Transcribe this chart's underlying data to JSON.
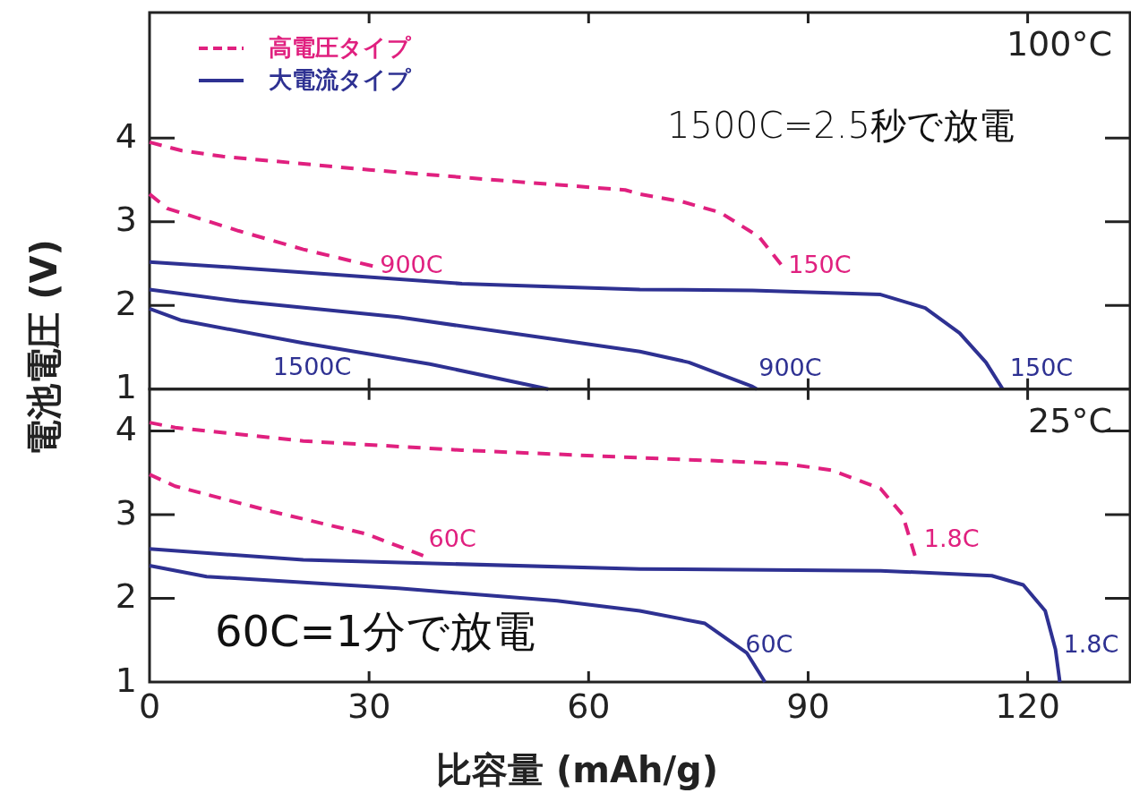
{
  "chart_data": [
    {
      "type": "line",
      "ylabel": "電池電圧 (V)",
      "xlim": [
        0,
        134
      ],
      "xticks": [
        0,
        30,
        60,
        90,
        120
      ],
      "ylim": [
        1,
        5.5
      ],
      "yticks": [
        1,
        2,
        3,
        4
      ],
      "tick_labels": "y",
      "legend": "top left",
      "series": [
        {
          "name": "高電圧タイプ",
          "color": "#e0207f",
          "line_style": "dashed",
          "x": [
            0,
            4.4,
            10,
            30,
            50,
            65,
            67,
            72.8,
            78,
            83.3,
            86.3
          ],
          "values": [
            3.95,
            3.85,
            3.78,
            3.62,
            3.48,
            3.38,
            3.33,
            3.24,
            3.11,
            2.82,
            2.49
          ]
        },
        {
          "color": "#e0207f",
          "line_style": "dashed",
          "x": [
            0,
            2.4,
            12.2,
            21,
            30.5
          ],
          "values": [
            3.33,
            3.16,
            2.89,
            2.67,
            2.47
          ]
        },
        {
          "name": "大電流タイプ",
          "color": "#2e3192",
          "line_style": "solid",
          "x": [
            0,
            12.2,
            42.7,
            67,
            82.4,
            99.9,
            106,
            110.7,
            114.3,
            116.6
          ],
          "values": [
            2.52,
            2.45,
            2.26,
            2.19,
            2.18,
            2.13,
            1.97,
            1.67,
            1.32,
            1.0
          ]
        },
        {
          "color": "#2e3192",
          "line_style": "solid",
          "x": [
            0,
            12.2,
            34,
            55.7,
            67,
            73.7,
            82.4,
            83
          ],
          "values": [
            2.19,
            2.05,
            1.86,
            1.59,
            1.45,
            1.32,
            1.03,
            1.0
          ]
        },
        {
          "color": "#2e3192",
          "line_style": "solid",
          "x": [
            0,
            4.4,
            21,
            38.3,
            54.5
          ],
          "values": [
            1.96,
            1.82,
            1.55,
            1.3,
            1.0
          ]
        }
      ],
      "annotations": [
        "100°C",
        "1500C=2.5秒で放電",
        {
          "text": "150C",
          "x": 86.3,
          "y": 2.49
        },
        {
          "text": "900C",
          "x": 30.5,
          "y": 2.47
        },
        {
          "text": "150C",
          "x": 116.6,
          "y": 1.0
        },
        {
          "text": "900C",
          "x": 83,
          "y": 1.0
        },
        {
          "text": "1500C",
          "x": 21,
          "y": 1.55
        }
      ]
    },
    {
      "type": "line",
      "xlabel": "比容量 (mAh/g)",
      "xlim": [
        0,
        134
      ],
      "xticks": [
        0,
        30,
        60,
        90,
        120
      ],
      "ylim": [
        1,
        4.5
      ],
      "yticks": [
        1,
        2,
        3,
        4
      ],
      "series": [
        {
          "color": "#e0207f",
          "line_style": "dashed",
          "x": [
            0,
            3.5,
            21,
            42.7,
            67,
            86.8,
            93.3,
            99.9,
            102.9,
            104.6
          ],
          "values": [
            4.1,
            4.04,
            3.88,
            3.77,
            3.68,
            3.61,
            3.53,
            3.31,
            3.0,
            2.51
          ]
        },
        {
          "color": "#e0207f",
          "line_style": "dashed",
          "x": [
            0,
            3.5,
            16.6,
            29.6,
            37.4
          ],
          "values": [
            3.48,
            3.34,
            3.04,
            2.77,
            2.51
          ]
        },
        {
          "color": "#2e3192",
          "line_style": "solid",
          "x": [
            0,
            21,
            67,
            99.9,
            115.1,
            119.4,
            122.4,
            123.8,
            124.4
          ],
          "values": [
            2.59,
            2.46,
            2.35,
            2.33,
            2.27,
            2.16,
            1.85,
            1.39,
            1.0
          ]
        },
        {
          "color": "#2e3192",
          "line_style": "solid",
          "x": [
            0,
            7.8,
            34,
            55.7,
            67,
            75.9,
            81.6,
            84.1
          ],
          "values": [
            2.39,
            2.26,
            2.12,
            1.97,
            1.85,
            1.7,
            1.35,
            1.0
          ]
        }
      ],
      "annotations": [
        "25°C",
        "60C=1分で放電",
        {
          "text": "60C",
          "x": 37.4,
          "y": 2.51
        },
        {
          "text": "1.8C",
          "x": 104.6,
          "y": 2.51
        },
        {
          "text": "60C",
          "x": 84.1,
          "y": 1.0
        },
        {
          "text": "1.8C",
          "x": 124.4,
          "y": 1.0
        }
      ]
    }
  ]
}
